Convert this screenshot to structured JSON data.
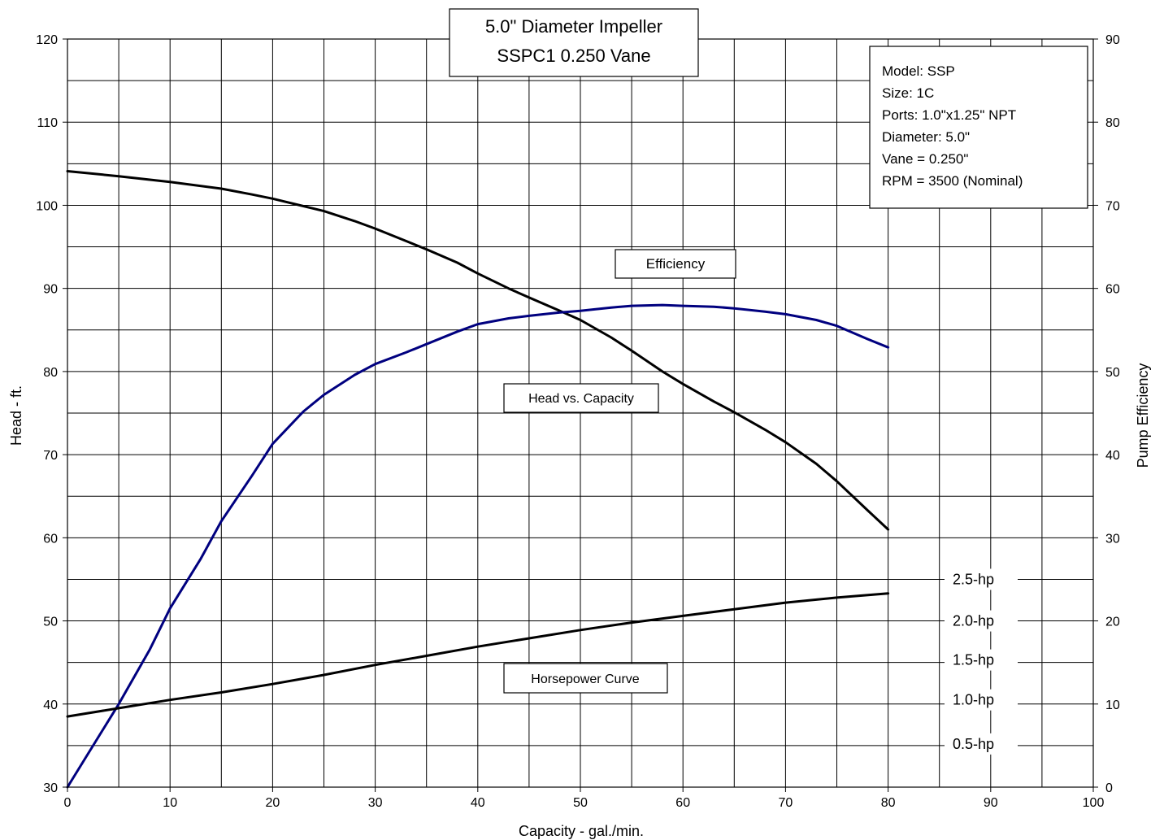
{
  "chart_data": {
    "type": "line",
    "title_lines": [
      "5.0\" Diameter Impeller",
      "SSPC1   0.250 Vane"
    ],
    "xlabel": "Capacity - gal./min.",
    "ylabel": "Head - ft.",
    "y2label": "Pump Efficiency",
    "xlim": [
      0,
      100
    ],
    "ylim": [
      30,
      120
    ],
    "y2lim": [
      0,
      90
    ],
    "x_ticks": [
      0,
      10,
      20,
      30,
      40,
      50,
      60,
      70,
      80,
      90,
      100
    ],
    "y_ticks": [
      30,
      40,
      50,
      60,
      70,
      80,
      90,
      100,
      110,
      120
    ],
    "y2_ticks": [
      0,
      10,
      20,
      30,
      40,
      50,
      60,
      70,
      80,
      90
    ],
    "grid": true,
    "info_box": [
      "Model: SSP",
      "Size: 1C",
      "Ports: 1.0\"x1.25\" NPT",
      "Diameter:  5.0\"",
      "Vane = 0.250\"",
      "RPM = 3500 (Nominal)"
    ],
    "curve_labels": {
      "efficiency": "Efficiency",
      "head": "Head vs. Capacity",
      "horsepower": "Horsepower Curve"
    },
    "hp_labels": [
      {
        "text": "2.5-hp",
        "y": 55
      },
      {
        "text": "2.0-hp",
        "y": 50
      },
      {
        "text": "1.5-hp",
        "y": 45.3
      },
      {
        "text": "1.0-hp",
        "y": 40.5
      },
      {
        "text": "0.5-hp",
        "y": 35.2
      }
    ],
    "series": [
      {
        "key": "head",
        "axis": "left",
        "color": "#000000",
        "x": [
          0,
          5,
          10,
          15,
          18,
          20,
          23,
          25,
          28,
          30,
          33,
          35,
          38,
          40,
          43,
          45,
          48,
          50,
          53,
          55,
          58,
          60,
          63,
          65,
          68,
          70,
          73,
          75,
          78,
          80
        ],
        "y": [
          104.1,
          103.5,
          102.8,
          102,
          101.3,
          100.8,
          99.9,
          99.3,
          98.1,
          97.2,
          95.7,
          94.7,
          93.1,
          91.8,
          90,
          88.9,
          87.3,
          86.2,
          84.1,
          82.5,
          80,
          78.5,
          76.4,
          75.1,
          73.0,
          71.5,
          68.9,
          66.8,
          63.3,
          61
        ]
      },
      {
        "key": "efficiency",
        "axis": "right",
        "color": "#00007f",
        "x": [
          0,
          2,
          5,
          8,
          10,
          13,
          15,
          18,
          20,
          23,
          25,
          28,
          30,
          33,
          35,
          38,
          40,
          43,
          45,
          48,
          50,
          53,
          55,
          58,
          60,
          63,
          65,
          68,
          70,
          73,
          75,
          78,
          80
        ],
        "y": [
          0,
          4,
          10,
          16.5,
          21.5,
          27.5,
          32,
          37.5,
          41.3,
          45.2,
          47.2,
          49.6,
          50.9,
          52.3,
          53.3,
          54.8,
          55.7,
          56.4,
          56.7,
          57.1,
          57.3,
          57.7,
          57.9,
          58,
          57.9,
          57.8,
          57.6,
          57.2,
          56.9,
          56.2,
          55.5,
          53.9,
          52.9
        ]
      },
      {
        "key": "horsepower",
        "axis": "left",
        "color": "#000000",
        "x": [
          0,
          5,
          10,
          15,
          20,
          25,
          30,
          35,
          40,
          45,
          50,
          55,
          60,
          65,
          70,
          75,
          80
        ],
        "y": [
          38.5,
          39.5,
          40.5,
          41.4,
          42.4,
          43.5,
          44.7,
          45.8,
          46.9,
          47.9,
          48.9,
          49.8,
          50.6,
          51.4,
          52.2,
          52.8,
          53.3
        ]
      }
    ]
  }
}
